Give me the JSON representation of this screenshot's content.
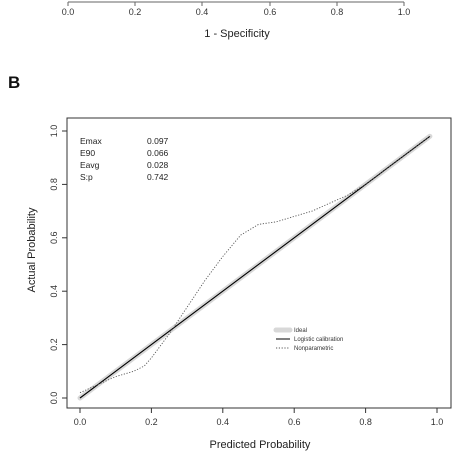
{
  "panel_a": {
    "x_ticks": [
      "0.0",
      "0.2",
      "0.4",
      "0.6",
      "0.8",
      "1.0"
    ],
    "x_label": "1 - Specificity"
  },
  "panel_b": {
    "letter": "B",
    "stats": [
      {
        "label": "Emax",
        "value": "0.097"
      },
      {
        "label": "E90",
        "value": "0.066"
      },
      {
        "label": "Eavg",
        "value": "0.028"
      },
      {
        "label": "S:p",
        "value": "0.742"
      }
    ],
    "legend": [
      "Ideal",
      "Logistic calibration",
      "Nonparametric"
    ],
    "colors": {
      "ideal": "#d8d8d8",
      "logistic": "#000000",
      "nonparametric": "#555555"
    }
  },
  "chart_data": {
    "type": "line",
    "xlabel": "Predicted Probability",
    "ylabel": "Actual Probability",
    "xlim": [
      0.0,
      1.0
    ],
    "ylim": [
      0.0,
      1.0
    ],
    "x_ticks": [
      "0.0",
      "0.2",
      "0.4",
      "0.6",
      "0.8",
      "1.0"
    ],
    "y_ticks": [
      "0.0",
      "0.2",
      "0.4",
      "0.6",
      "0.8",
      "1.0"
    ],
    "grid": false,
    "legend_position": "center-right",
    "series": [
      {
        "name": "Ideal",
        "style": "thick-light",
        "x": [
          0.0,
          0.98
        ],
        "y": [
          0.0,
          0.98
        ]
      },
      {
        "name": "Logistic calibration",
        "style": "solid",
        "x": [
          0.0,
          0.98
        ],
        "y": [
          0.0,
          0.98
        ]
      },
      {
        "name": "Nonparametric",
        "style": "dotted",
        "x": [
          0.0,
          0.05,
          0.1,
          0.15,
          0.18,
          0.2,
          0.25,
          0.3,
          0.35,
          0.4,
          0.45,
          0.5,
          0.55,
          0.6,
          0.65,
          0.7,
          0.75,
          0.8,
          0.85,
          0.9,
          0.95,
          0.98
        ],
        "y": [
          0.02,
          0.05,
          0.08,
          0.1,
          0.12,
          0.15,
          0.24,
          0.34,
          0.44,
          0.53,
          0.61,
          0.65,
          0.66,
          0.68,
          0.7,
          0.73,
          0.76,
          0.8,
          0.85,
          0.9,
          0.95,
          0.98
        ]
      }
    ]
  }
}
